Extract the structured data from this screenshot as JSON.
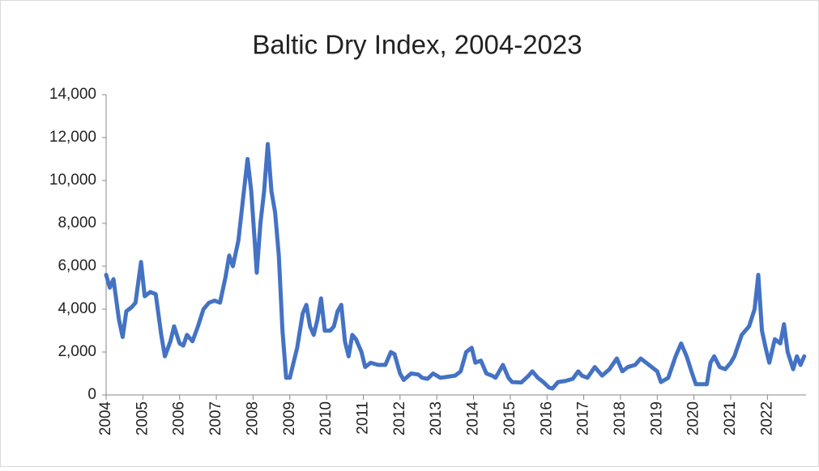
{
  "chart_data": {
    "type": "line",
    "title": "Baltic Dry Index, 2004-2023",
    "xlim": [
      2004,
      2023.05
    ],
    "xticks": [
      2004,
      2005,
      2006,
      2007,
      2008,
      2009,
      2010,
      2011,
      2012,
      2013,
      2014,
      2015,
      2016,
      2017,
      2018,
      2019,
      2020,
      2021,
      2022
    ],
    "ylim": [
      0,
      14000
    ],
    "yticks": [
      0,
      {
        "value": 2000,
        "label": "2,000"
      },
      {
        "value": 4000,
        "label": "4,000"
      },
      {
        "value": 6000,
        "label": "6,000"
      },
      {
        "value": 8000,
        "label": "8,000"
      },
      {
        "value": 10000,
        "label": "10,000"
      },
      {
        "value": 12000,
        "label": "12,000"
      },
      {
        "value": 14000,
        "label": "14,000"
      }
    ],
    "grid": false,
    "series": [
      {
        "color": "#4472c4",
        "x": [
          2004.0,
          2004.1,
          2004.2,
          2004.35,
          2004.45,
          2004.55,
          2004.7,
          2004.8,
          2004.95,
          2005.05,
          2005.2,
          2005.35,
          2005.5,
          2005.6,
          2005.75,
          2005.85,
          2006.0,
          2006.1,
          2006.2,
          2006.35,
          2006.5,
          2006.65,
          2006.8,
          2006.95,
          2007.1,
          2007.25,
          2007.35,
          2007.45,
          2007.6,
          2007.75,
          2007.85,
          2007.95,
          2008.05,
          2008.1,
          2008.2,
          2008.3,
          2008.4,
          2008.5,
          2008.6,
          2008.7,
          2008.8,
          2008.9,
          2009.0,
          2009.1,
          2009.2,
          2009.35,
          2009.45,
          2009.55,
          2009.65,
          2009.75,
          2009.85,
          2009.95,
          2010.1,
          2010.2,
          2010.3,
          2010.4,
          2010.5,
          2010.6,
          2010.7,
          2010.8,
          2010.95,
          2011.05,
          2011.2,
          2011.4,
          2011.6,
          2011.75,
          2011.85,
          2012.0,
          2012.1,
          2012.3,
          2012.5,
          2012.6,
          2012.75,
          2012.9,
          2013.1,
          2013.3,
          2013.5,
          2013.65,
          2013.8,
          2013.95,
          2014.05,
          2014.2,
          2014.35,
          2014.5,
          2014.6,
          2014.8,
          2014.95,
          2015.05,
          2015.3,
          2015.5,
          2015.6,
          2015.75,
          2015.9,
          2016.05,
          2016.15,
          2016.3,
          2016.5,
          2016.7,
          2016.85,
          2016.95,
          2017.1,
          2017.3,
          2017.5,
          2017.7,
          2017.9,
          2018.05,
          2018.2,
          2018.4,
          2018.55,
          2018.7,
          2018.85,
          2019.0,
          2019.1,
          2019.3,
          2019.5,
          2019.65,
          2019.8,
          2019.95,
          2020.05,
          2020.2,
          2020.35,
          2020.45,
          2020.55,
          2020.7,
          2020.85,
          2021.0,
          2021.1,
          2021.3,
          2021.5,
          2021.65,
          2021.75,
          2021.85,
          2021.95,
          2022.05,
          2022.2,
          2022.35,
          2022.45,
          2022.55,
          2022.7,
          2022.8,
          2022.9,
          2023.0
        ],
        "values": [
          5600,
          5000,
          5400,
          3500,
          2700,
          3900,
          4100,
          4300,
          6200,
          4600,
          4800,
          4700,
          2800,
          1800,
          2500,
          3200,
          2400,
          2300,
          2800,
          2500,
          3200,
          4000,
          4300,
          4400,
          4300,
          5500,
          6500,
          6000,
          7200,
          9500,
          11000,
          9500,
          7000,
          5700,
          8000,
          9500,
          11700,
          9500,
          8500,
          6500,
          3000,
          800,
          800,
          1500,
          2200,
          3800,
          4200,
          3200,
          2800,
          3500,
          4500,
          3000,
          3000,
          3200,
          3900,
          4200,
          2500,
          1800,
          2800,
          2600,
          2000,
          1300,
          1500,
          1400,
          1400,
          2000,
          1900,
          1000,
          700,
          1000,
          950,
          800,
          750,
          1000,
          800,
          850,
          900,
          1100,
          2000,
          2200,
          1500,
          1600,
          1000,
          900,
          800,
          1400,
          800,
          600,
          580,
          900,
          1100,
          800,
          600,
          350,
          300,
          600,
          650,
          750,
          1100,
          900,
          800,
          1300,
          900,
          1200,
          1700,
          1100,
          1300,
          1400,
          1700,
          1500,
          1300,
          1100,
          600,
          800,
          1800,
          2400,
          1800,
          1000,
          500,
          500,
          500,
          1500,
          1800,
          1300,
          1200,
          1500,
          1800,
          2800,
          3200,
          4000,
          5600,
          3000,
          2200,
          1500,
          2600,
          2400,
          3300,
          2000,
          1200,
          1800,
          1400,
          1800
        ]
      }
    ]
  }
}
